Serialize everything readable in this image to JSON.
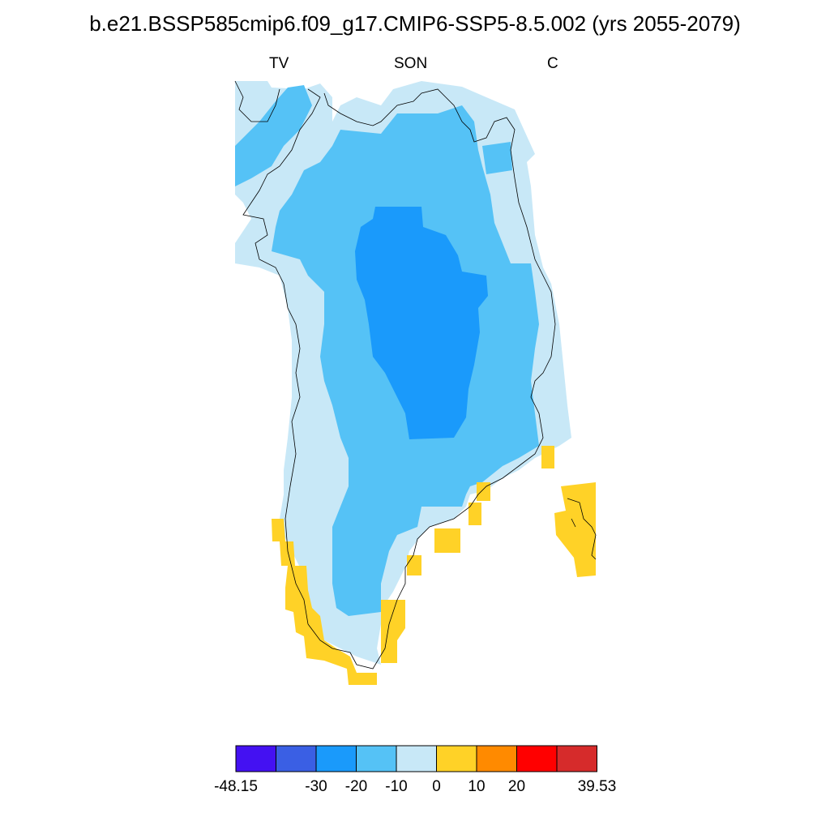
{
  "title": "b.e21.BSSP585cmip6.f09_g17.CMIP6-SSP5-8.5.002 (yrs 2055-2079)",
  "subtitles": {
    "left": "TV",
    "center": "SON",
    "right": "C"
  },
  "colorbar": {
    "colors": [
      "#4411f2",
      "#3a5fe4",
      "#1a9afb",
      "#55c2f6",
      "#c8e8f7",
      "#ffd227",
      "#ff8a00",
      "#ff0000",
      "#d62b2b"
    ],
    "labels": [
      "-48.15",
      "-30",
      "-20",
      "-10",
      "0",
      "10",
      "20",
      "39.53"
    ]
  }
}
